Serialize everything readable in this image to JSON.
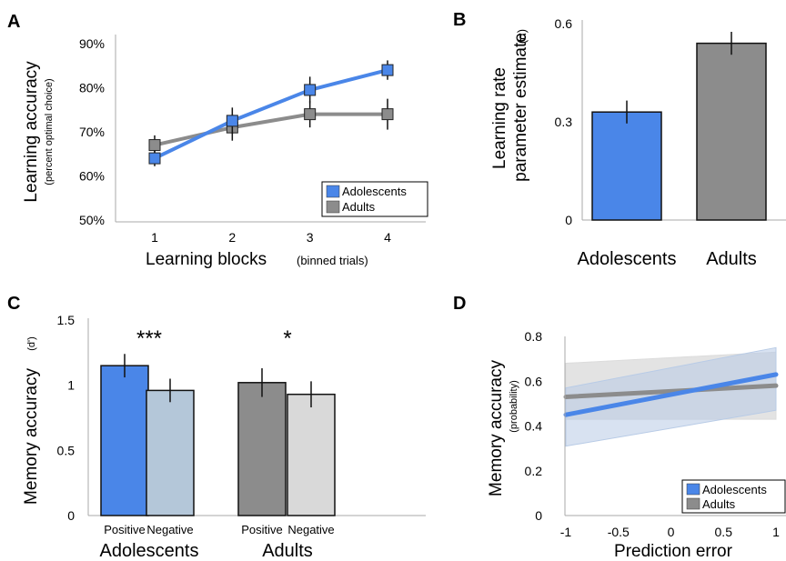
{
  "chart_data": [
    {
      "panel": "A",
      "type": "line",
      "xlabel_main": "Learning blocks",
      "xlabel_sub": "(binned trials)",
      "ylabel_main": "Learning accuracy",
      "ylabel_sub": "(percent optimal choice)",
      "x": [
        1,
        2,
        3,
        4
      ],
      "x_ticks": [
        "1",
        "2",
        "3",
        "4"
      ],
      "ylim": [
        50,
        90
      ],
      "y_ticks": [
        "50%",
        "60%",
        "70%",
        "80%",
        "90%"
      ],
      "y_tick_values": [
        50,
        60,
        70,
        80,
        90
      ],
      "legend_position": "bottom-right",
      "series": [
        {
          "name": "Adolescents",
          "color": "#4a86e8",
          "values": [
            64,
            72.5,
            79.5,
            84
          ],
          "err": [
            1.8,
            3,
            3,
            2.2
          ]
        },
        {
          "name": "Adults",
          "color": "#8c8c8c",
          "values": [
            67,
            71,
            74,
            74
          ],
          "err": [
            2.2,
            3,
            3,
            3.5
          ]
        }
      ]
    },
    {
      "panel": "B",
      "type": "bar",
      "ylabel_line1": "Learning rate",
      "ylabel_line2": "parameter estimate",
      "ylabel_symbol": "(α)",
      "categories": [
        "Adolescents",
        "Adults"
      ],
      "ylim": [
        0,
        0.6
      ],
      "y_ticks": [
        "0",
        "0.3",
        "0.6"
      ],
      "y_tick_values": [
        0,
        0.3,
        0.6
      ],
      "colors": [
        "#4a86e8",
        "#8c8c8c"
      ],
      "values": [
        0.33,
        0.54
      ],
      "err": [
        0.035,
        0.035
      ]
    },
    {
      "panel": "C",
      "type": "bar",
      "ylabel_main": "Memory accuracy",
      "ylabel_sub": "(d')",
      "groups": [
        "Adolescents",
        "Adults"
      ],
      "categories": [
        "Positive",
        "Negative",
        "Positive",
        "Negative"
      ],
      "ylim": [
        0,
        1.5
      ],
      "y_ticks": [
        "0",
        "0.5",
        "1",
        "1.5"
      ],
      "y_tick_values": [
        0,
        0.5,
        1,
        1.5
      ],
      "colors": [
        "#4a86e8",
        "#b4c7d9",
        "#8c8c8c",
        "#d9d9d9"
      ],
      "values": [
        1.15,
        0.96,
        1.02,
        0.93
      ],
      "err": [
        0.09,
        0.09,
        0.11,
        0.1
      ],
      "significance": [
        "***",
        "*"
      ]
    },
    {
      "panel": "D",
      "type": "line",
      "xlabel": "Prediction error",
      "ylabel_main": "Memory accuracy",
      "ylabel_sub": "(probability)",
      "xlim": [
        -1,
        1
      ],
      "x_ticks": [
        "-1",
        "-0.5",
        "0",
        "0.5",
        "1"
      ],
      "x_tick_values": [
        -1,
        -0.5,
        0,
        0.5,
        1
      ],
      "ylim": [
        0,
        0.8
      ],
      "y_ticks": [
        "0",
        "0.2",
        "0.4",
        "0.6",
        "0.8"
      ],
      "y_tick_values": [
        0,
        0.2,
        0.4,
        0.6,
        0.8
      ],
      "legend_position": "bottom-right",
      "series": [
        {
          "name": "Adolescents",
          "color": "#4a86e8",
          "band_color": "#b8cbe6",
          "x": [
            -1,
            1
          ],
          "values": [
            0.45,
            0.63
          ],
          "ci_low": [
            0.31,
            0.47
          ],
          "ci_high": [
            0.57,
            0.75
          ]
        },
        {
          "name": "Adults",
          "color": "#8c8c8c",
          "band_color": "#dcdcdc",
          "x": [
            -1,
            1
          ],
          "values": [
            0.53,
            0.58
          ],
          "ci_low": [
            0.43,
            0.43
          ],
          "ci_high": [
            0.68,
            0.73
          ]
        }
      ]
    }
  ],
  "panel_labels": [
    "A",
    "B",
    "C",
    "D"
  ]
}
